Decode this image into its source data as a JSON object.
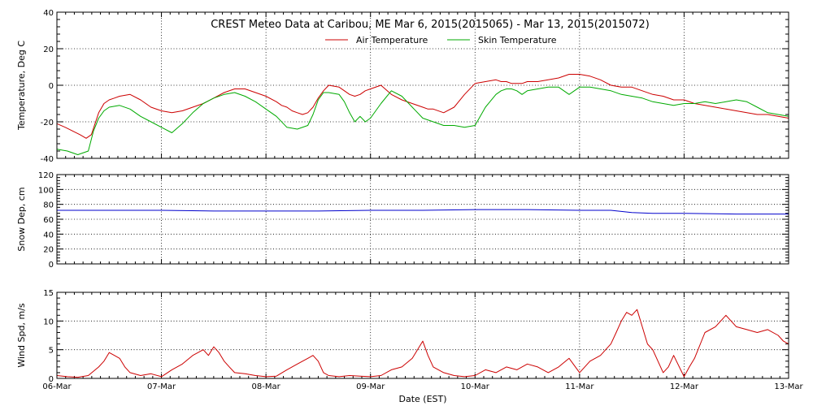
{
  "chart_data": {
    "type": "line",
    "title": "CREST Meteo Data at Caribou, ME   Mar  6, 2015(2015065) - Mar 13, 2015(2015072)",
    "xlabel": "Date (EST)",
    "x_ticks": [
      "06-Mar",
      "07-Mar",
      "08-Mar",
      "09-Mar",
      "10-Mar",
      "11-Mar",
      "12-Mar",
      "13-Mar"
    ],
    "xlim": [
      0,
      7
    ],
    "grid": true,
    "legend_position": "top-center",
    "panels": [
      {
        "ylabel": "Temperature, Deg C",
        "ylim": [
          -40,
          40
        ],
        "y_ticks": [
          -40,
          -20,
          0,
          20,
          40
        ],
        "y_grid": [
          -20,
          0,
          20
        ],
        "series": [
          {
            "name": "Air Temperature",
            "color": "#cc0000",
            "x": [
              0.0,
              0.08,
              0.15,
              0.22,
              0.28,
              0.33,
              0.4,
              0.45,
              0.5,
              0.55,
              0.6,
              0.7,
              0.8,
              0.9,
              1.0,
              1.1,
              1.2,
              1.3,
              1.4,
              1.5,
              1.6,
              1.7,
              1.8,
              1.9,
              2.0,
              2.1,
              2.15,
              2.2,
              2.25,
              2.3,
              2.35,
              2.4,
              2.45,
              2.5,
              2.55,
              2.6,
              2.7,
              2.75,
              2.8,
              2.85,
              2.9,
              2.95,
              3.0,
              3.1,
              3.2,
              3.3,
              3.4,
              3.5,
              3.55,
              3.6,
              3.7,
              3.8,
              3.9,
              4.0,
              4.1,
              4.2,
              4.25,
              4.3,
              4.35,
              4.4,
              4.45,
              4.5,
              4.6,
              4.7,
              4.8,
              4.9,
              5.0,
              5.1,
              5.2,
              5.3,
              5.4,
              5.5,
              5.6,
              5.7,
              5.8,
              5.9,
              6.0,
              6.1,
              6.2,
              6.3,
              6.4,
              6.5,
              6.6,
              6.7,
              6.8,
              6.9,
              7.0
            ],
            "y": [
              -21,
              -23,
              -25,
              -27,
              -29,
              -27,
              -15,
              -10,
              -8,
              -7,
              -6,
              -5,
              -8,
              -12,
              -14,
              -15,
              -14,
              -12,
              -10,
              -7,
              -4,
              -2,
              -2,
              -4,
              -6,
              -9,
              -11,
              -12,
              -14,
              -15,
              -16,
              -15,
              -12,
              -7,
              -3,
              0,
              -1,
              -3,
              -5,
              -6,
              -5,
              -3,
              -2,
              0,
              -5,
              -8,
              -10,
              -12,
              -13,
              -13,
              -15,
              -12,
              -5,
              1,
              2,
              3,
              2,
              2,
              1,
              1,
              1,
              2,
              2,
              3,
              4,
              6,
              6,
              5,
              3,
              0,
              -1,
              -1,
              -3,
              -5,
              -6,
              -8,
              -8,
              -10,
              -11,
              -12,
              -13,
              -14,
              -15,
              -16,
              -16,
              -17,
              -18
            ]
          },
          {
            "name": "Skin Temperature",
            "color": "#00aa00",
            "x": [
              0.0,
              0.1,
              0.2,
              0.3,
              0.35,
              0.4,
              0.45,
              0.5,
              0.6,
              0.7,
              0.8,
              0.9,
              1.0,
              1.1,
              1.2,
              1.3,
              1.4,
              1.5,
              1.6,
              1.7,
              1.8,
              1.9,
              2.0,
              2.1,
              2.2,
              2.3,
              2.4,
              2.45,
              2.5,
              2.55,
              2.6,
              2.7,
              2.75,
              2.8,
              2.85,
              2.9,
              2.95,
              3.0,
              3.1,
              3.2,
              3.3,
              3.4,
              3.5,
              3.6,
              3.7,
              3.8,
              3.9,
              4.0,
              4.1,
              4.2,
              4.25,
              4.3,
              4.35,
              4.4,
              4.45,
              4.5,
              4.6,
              4.7,
              4.8,
              4.9,
              5.0,
              5.1,
              5.2,
              5.3,
              5.4,
              5.5,
              5.6,
              5.7,
              5.8,
              5.9,
              6.0,
              6.1,
              6.2,
              6.3,
              6.4,
              6.5,
              6.6,
              6.7,
              6.8,
              6.9,
              7.0
            ],
            "y": [
              -35,
              -36,
              -38,
              -36,
              -25,
              -18,
              -14,
              -12,
              -11,
              -13,
              -17,
              -20,
              -23,
              -26,
              -21,
              -15,
              -10,
              -7,
              -5,
              -4,
              -6,
              -9,
              -13,
              -17,
              -23,
              -24,
              -22,
              -16,
              -8,
              -4,
              -4,
              -5,
              -9,
              -15,
              -20,
              -17,
              -20,
              -18,
              -10,
              -3,
              -6,
              -12,
              -18,
              -20,
              -22,
              -22,
              -23,
              -22,
              -12,
              -5,
              -3,
              -2,
              -2,
              -3,
              -5,
              -3,
              -2,
              -1,
              -1,
              -5,
              -1,
              -1,
              -2,
              -3,
              -5,
              -6,
              -7,
              -9,
              -10,
              -11,
              -10,
              -10,
              -9,
              -10,
              -9,
              -8,
              -9,
              -12,
              -15,
              -16,
              -17
            ]
          }
        ]
      },
      {
        "ylabel": "Snow Dep, cm",
        "ylim": [
          0,
          120
        ],
        "y_ticks": [
          0,
          20,
          40,
          60,
          80,
          100,
          120
        ],
        "y_grid": [
          20,
          40,
          60,
          80,
          100
        ],
        "series": [
          {
            "name": "Snow Depth",
            "color": "#0000cc",
            "x": [
              0.0,
              0.5,
              1.0,
              1.5,
              2.0,
              2.5,
              3.0,
              3.5,
              4.0,
              4.5,
              5.0,
              5.3,
              5.5,
              5.7,
              6.0,
              6.5,
              7.0
            ],
            "y": [
              72,
              72,
              72,
              71,
              71,
              71,
              72,
              72,
              73,
              73,
              72,
              72,
              69,
              68,
              68,
              67,
              67
            ]
          }
        ]
      },
      {
        "ylabel": "Wind Spd, m/s",
        "ylim": [
          0,
          15
        ],
        "y_ticks": [
          0,
          5,
          10,
          15
        ],
        "y_grid": [
          5,
          10
        ],
        "series": [
          {
            "name": "Wind Speed",
            "color": "#cc0000",
            "x": [
              0.0,
              0.1,
              0.2,
              0.3,
              0.4,
              0.45,
              0.5,
              0.55,
              0.6,
              0.65,
              0.7,
              0.8,
              0.9,
              1.0,
              1.1,
              1.2,
              1.3,
              1.4,
              1.45,
              1.5,
              1.55,
              1.6,
              1.65,
              1.7,
              1.8,
              1.9,
              2.0,
              2.1,
              2.2,
              2.3,
              2.4,
              2.45,
              2.5,
              2.55,
              2.6,
              2.7,
              2.8,
              2.9,
              3.0,
              3.1,
              3.2,
              3.3,
              3.4,
              3.5,
              3.55,
              3.6,
              3.7,
              3.8,
              3.9,
              4.0,
              4.1,
              4.2,
              4.3,
              4.4,
              4.5,
              4.6,
              4.7,
              4.8,
              4.9,
              5.0,
              5.1,
              5.2,
              5.3,
              5.35,
              5.4,
              5.45,
              5.5,
              5.55,
              5.6,
              5.65,
              5.7,
              5.75,
              5.8,
              5.85,
              5.9,
              6.0,
              6.05,
              6.1,
              6.2,
              6.3,
              6.4,
              6.5,
              6.6,
              6.7,
              6.8,
              6.9,
              6.95,
              7.0
            ],
            "y": [
              0.5,
              0.3,
              0.2,
              0.5,
              2.0,
              3.0,
              4.5,
              4.0,
              3.5,
              2.0,
              1.0,
              0.5,
              0.8,
              0.3,
              1.5,
              2.5,
              4.0,
              5.0,
              4.0,
              5.5,
              4.5,
              3.0,
              2.0,
              1.0,
              0.8,
              0.5,
              0.3,
              0.4,
              1.5,
              2.5,
              3.5,
              4.0,
              3.0,
              1.0,
              0.5,
              0.3,
              0.5,
              0.4,
              0.3,
              0.5,
              1.5,
              2.0,
              3.5,
              6.5,
              4.0,
              2.0,
              1.0,
              0.5,
              0.3,
              0.5,
              1.5,
              1.0,
              2.0,
              1.5,
              2.5,
              2.0,
              1.0,
              2.0,
              3.5,
              1.0,
              3.0,
              4.0,
              6.0,
              8.0,
              10.0,
              11.5,
              11.0,
              12.0,
              9.0,
              6.0,
              5.0,
              3.0,
              1.0,
              2.0,
              4.0,
              0.3,
              2.0,
              3.5,
              8.0,
              9.0,
              11.0,
              9.0,
              8.5,
              8.0,
              8.5,
              7.5,
              6.5,
              6.0
            ]
          }
        ]
      }
    ]
  }
}
